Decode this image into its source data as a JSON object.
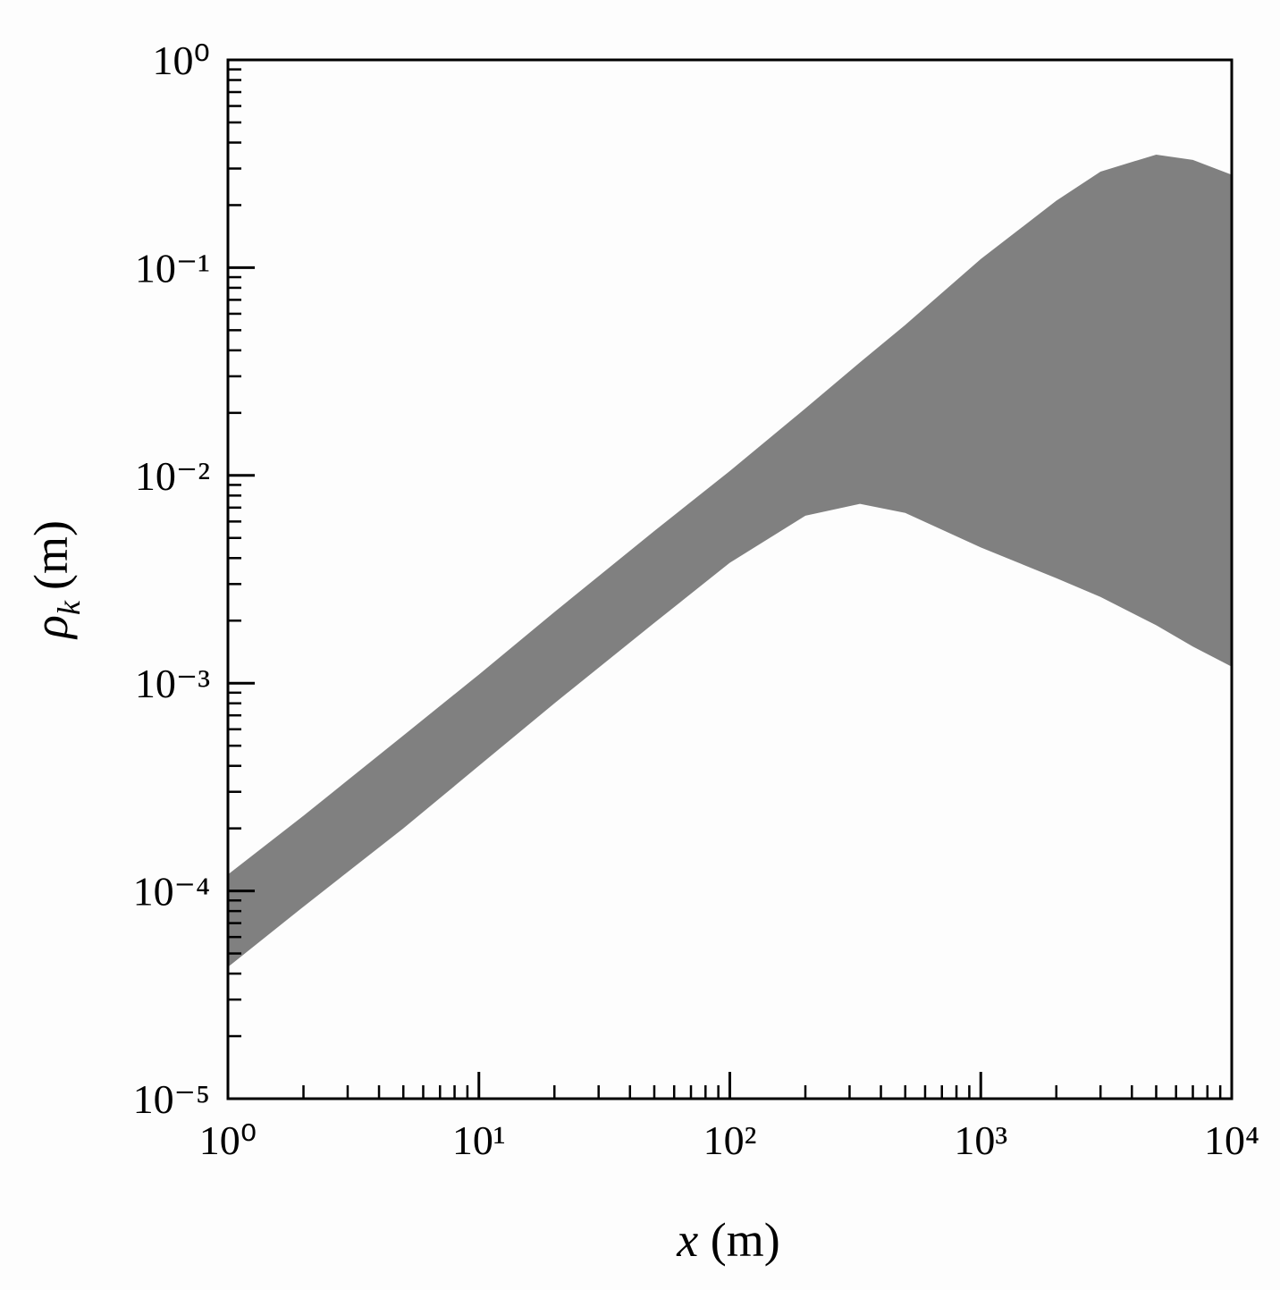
{
  "chart_data": {
    "type": "band",
    "xscale": "log",
    "yscale": "log",
    "color": "#808080",
    "xlabel": {
      "symbol": "x",
      "unit": "(m)"
    },
    "ylabel": {
      "symbol": "ρ",
      "subscript": "k",
      "unit": "(m)"
    },
    "x": [
      1,
      2,
      5,
      10,
      20,
      50,
      100,
      200,
      330,
      500,
      1000,
      2000,
      3000,
      5000,
      7000,
      10000
    ],
    "upper": [
      0.00012,
      0.00023,
      0.00056,
      0.0011,
      0.0022,
      0.0054,
      0.0105,
      0.021,
      0.035,
      0.053,
      0.11,
      0.21,
      0.29,
      0.35,
      0.33,
      0.28
    ],
    "lower": [
      4.3e-05,
      8.4e-05,
      0.0002,
      0.0004,
      0.0008,
      0.00195,
      0.0038,
      0.0064,
      0.0073,
      0.0066,
      0.0045,
      0.0032,
      0.0026,
      0.0019,
      0.0015,
      0.0012
    ],
    "xlim": [
      1,
      10000
    ],
    "ylim": [
      1e-05,
      1
    ],
    "xticks": [
      {
        "value": 1,
        "label": "10⁰"
      },
      {
        "value": 10,
        "label": "10¹"
      },
      {
        "value": 100,
        "label": "10²"
      },
      {
        "value": 1000,
        "label": "10³"
      },
      {
        "value": 10000,
        "label": "10⁴"
      }
    ],
    "yticks": [
      {
        "value": 1e-05,
        "label": "10⁻⁵"
      },
      {
        "value": 0.0001,
        "label": "10⁻⁴"
      },
      {
        "value": 0.001,
        "label": "10⁻³"
      },
      {
        "value": 0.01,
        "label": "10⁻²"
      },
      {
        "value": 0.1,
        "label": "10⁻¹"
      },
      {
        "value": 1,
        "label": "10⁰"
      }
    ],
    "minor_ticks": true
  }
}
